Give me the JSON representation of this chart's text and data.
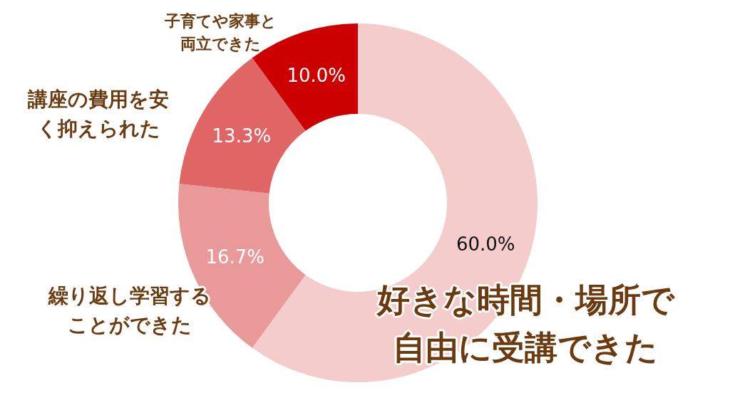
{
  "chart_data": {
    "type": "donut",
    "categories": [
      "好きな時間・場所で自由に受講できた",
      "繰り返し学習することができた",
      "講座の費用を安く抑えられた",
      "子育てや家事と両立できた"
    ],
    "values": [
      60.0,
      16.7,
      13.3,
      10.0
    ],
    "colors": [
      "#f4cccc",
      "#ea9999",
      "#e06666",
      "#cc0000"
    ],
    "value_labels": [
      "60.0%",
      "16.7%",
      "13.3%",
      "10.0%"
    ]
  }
}
